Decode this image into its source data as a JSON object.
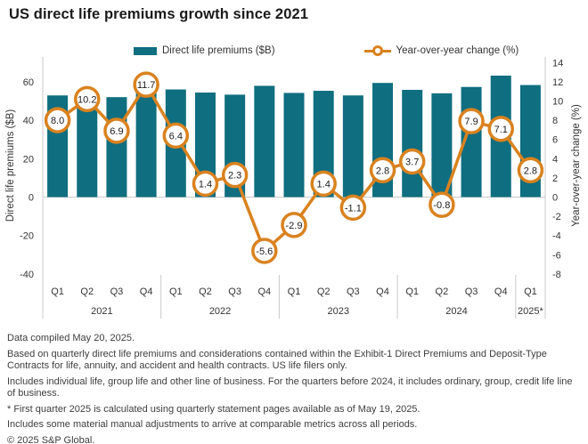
{
  "title": "US direct life premiums growth since 2021",
  "legend": {
    "bars_label": "Direct life premiums ($B)",
    "line_label": "Year-over-year change (%)"
  },
  "chart_data": {
    "type": "bar+line combo",
    "categories": [
      "Q1",
      "Q2",
      "Q3",
      "Q4",
      "Q1",
      "Q2",
      "Q3",
      "Q4",
      "Q1",
      "Q2",
      "Q3",
      "Q4",
      "Q1",
      "Q2",
      "Q3",
      "Q4",
      "Q1"
    ],
    "year_groups": [
      {
        "label": "2021",
        "quarters": 4
      },
      {
        "label": "2022",
        "quarters": 4
      },
      {
        "label": "2023",
        "quarters": 4
      },
      {
        "label": "2024",
        "quarters": 4
      },
      {
        "label": "2025*",
        "quarters": 1
      }
    ],
    "series": [
      {
        "name": "Direct life premiums ($B)",
        "type": "bar",
        "axis": "left",
        "values": [
          52.9,
          53.8,
          52.0,
          61.0,
          56.0,
          54.4,
          53.3,
          57.9,
          54.2,
          55.3,
          52.9,
          59.4,
          55.8,
          54.0,
          57.3,
          63.2,
          58.3
        ]
      },
      {
        "name": "Year-over-year change (%)",
        "type": "line",
        "axis": "right",
        "values": [
          8.0,
          10.2,
          6.9,
          11.7,
          6.4,
          1.4,
          2.3,
          -5.6,
          -2.9,
          1.4,
          -1.1,
          2.8,
          3.7,
          -0.8,
          7.9,
          7.1,
          2.8
        ],
        "data_labels": [
          "8.0",
          "10.2",
          "6.9",
          "11.7",
          "6.4",
          "1.4",
          "2.3",
          "-5.6",
          "-2.9",
          "1.4",
          "-1.1",
          "2.8",
          "3.7",
          "-0.8",
          "7.9",
          "7.1",
          "2.8"
        ]
      }
    ],
    "left_axis": {
      "title": "Direct life premiums ($B)",
      "ticks": [
        60,
        40,
        20,
        0,
        -20,
        -40
      ],
      "range": [
        -40,
        70
      ]
    },
    "right_axis": {
      "title": "Year-over-year change (%)",
      "ticks": [
        14,
        12,
        10,
        8,
        6,
        4,
        2,
        0,
        -2,
        -4,
        -6,
        -8
      ],
      "range": [
        -8,
        14
      ]
    },
    "grid": "zero-line only, vertical year separators",
    "legend_position": "top-center",
    "colors": {
      "bar": "#0f6e80",
      "line": "#d9821f",
      "axis_line": "#c9c9c9",
      "text": "#333333"
    }
  },
  "footnotes": [
    "Data compiled May 20, 2025.",
    "Based on quarterly direct life premiums and considerations contained within the Exhibit-1 Direct Premiums and Deposit-Type Contracts for life, annuity, and accident and health contracts. US life filers only.",
    "Includes individual life, group life and other line of business. For the quarters before 2024, it includes ordinary, group, credit life line of business.",
    "* First quarter 2025 is calculated using quarterly statement pages available as of May 19, 2025.",
    "Includes some material manual adjustments to arrive at comparable metrics across all periods.",
    "© 2025 S&P Global."
  ]
}
